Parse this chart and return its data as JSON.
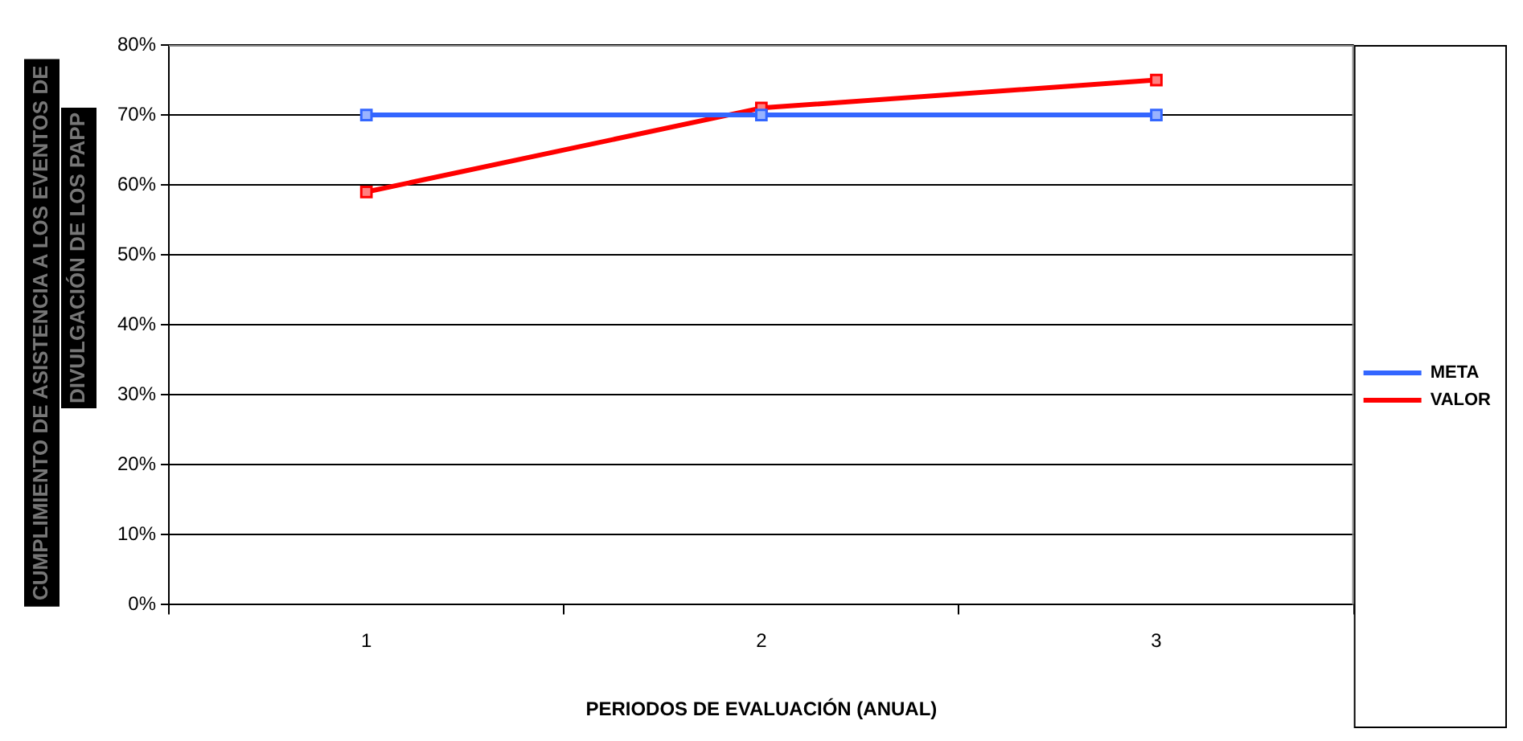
{
  "chart_data": {
    "type": "line",
    "xlabel": "PERIODOS DE EVALUACIÓN (ANUAL)",
    "ylabel": "CUMPLIMIENTO DE ASISTENCIA A LOS EVENTOS DE\nDIVULGACIÓN DE LOS PAPP",
    "categories": [
      "1",
      "2",
      "3"
    ],
    "series": [
      {
        "name": "META",
        "color": "#3366ff",
        "values": [
          70,
          70,
          70
        ]
      },
      {
        "name": "VALOR",
        "color": "#ff0000",
        "values": [
          59,
          71,
          75
        ]
      }
    ],
    "ylim": [
      0,
      80
    ],
    "yticks": [
      {
        "value": 0,
        "label": "0%"
      },
      {
        "value": 10,
        "label": "10%"
      },
      {
        "value": 20,
        "label": "20%"
      },
      {
        "value": 30,
        "label": "30%"
      },
      {
        "value": 40,
        "label": "40%"
      },
      {
        "value": 50,
        "label": "50%"
      },
      {
        "value": 60,
        "label": "60%"
      },
      {
        "value": 70,
        "label": "70%"
      },
      {
        "value": 80,
        "label": "80%"
      }
    ],
    "grid": "y",
    "legend": "right",
    "marker": "square",
    "line_style": "solid"
  }
}
